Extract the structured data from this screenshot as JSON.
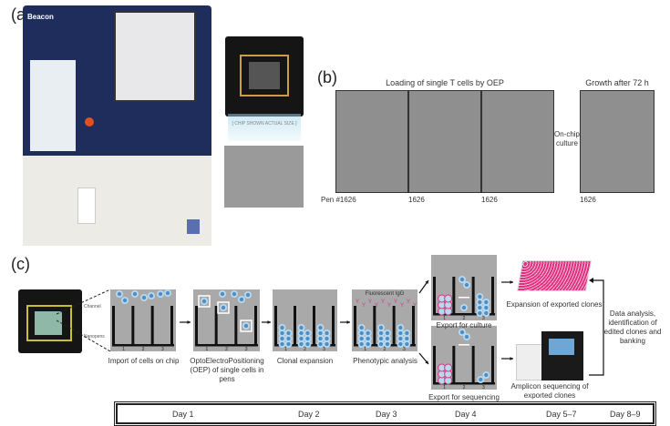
{
  "panel_a": {
    "label": "(a)",
    "instrument_name": "Beacon",
    "chip_caption": "[ CHIP SHOWN ACTUAL SIZE ]"
  },
  "panel_b": {
    "label": "(b)",
    "loading_title": "Loading of single T cells by OEP",
    "growth_title": "Growth after 72 h",
    "culture_label": "On-chip culture",
    "pen_labels": [
      "Pen #1626",
      "1626",
      "1626",
      "1626"
    ]
  },
  "panel_c": {
    "label": "(c)",
    "chip_labels": {
      "channel": "Channel",
      "nanopens": "Nanopens"
    },
    "steps": [
      {
        "caption": "Import of cells on chip"
      },
      {
        "caption": "OptoElectroPositioning (OEP) of single cells in pens"
      },
      {
        "caption": "Clonal expansion"
      },
      {
        "caption": "Phenotypic analysis",
        "annotation": "Fluorescent IgG"
      }
    ],
    "pen_numbers": [
      "1",
      "2",
      "3"
    ],
    "export_culture": "Export for culture",
    "export_sequencing": "Export for sequencing",
    "expansion": "Expansion of exported clones",
    "amplicon": "Amplicon sequencing of exported clones",
    "data_analysis": "Data analysis, identification of edited clones and banking",
    "days": [
      "Day 1",
      "Day 2",
      "Day 3",
      "Day 4",
      "Day 5–7",
      "Day 8–9"
    ]
  },
  "colors": {
    "cell": "#4a90c8",
    "cell_halo": "#b9d8ee",
    "pen_bg": "#a9a9a9",
    "magenta": "#e0307f",
    "instrument_blue": "#1f2d5c"
  }
}
